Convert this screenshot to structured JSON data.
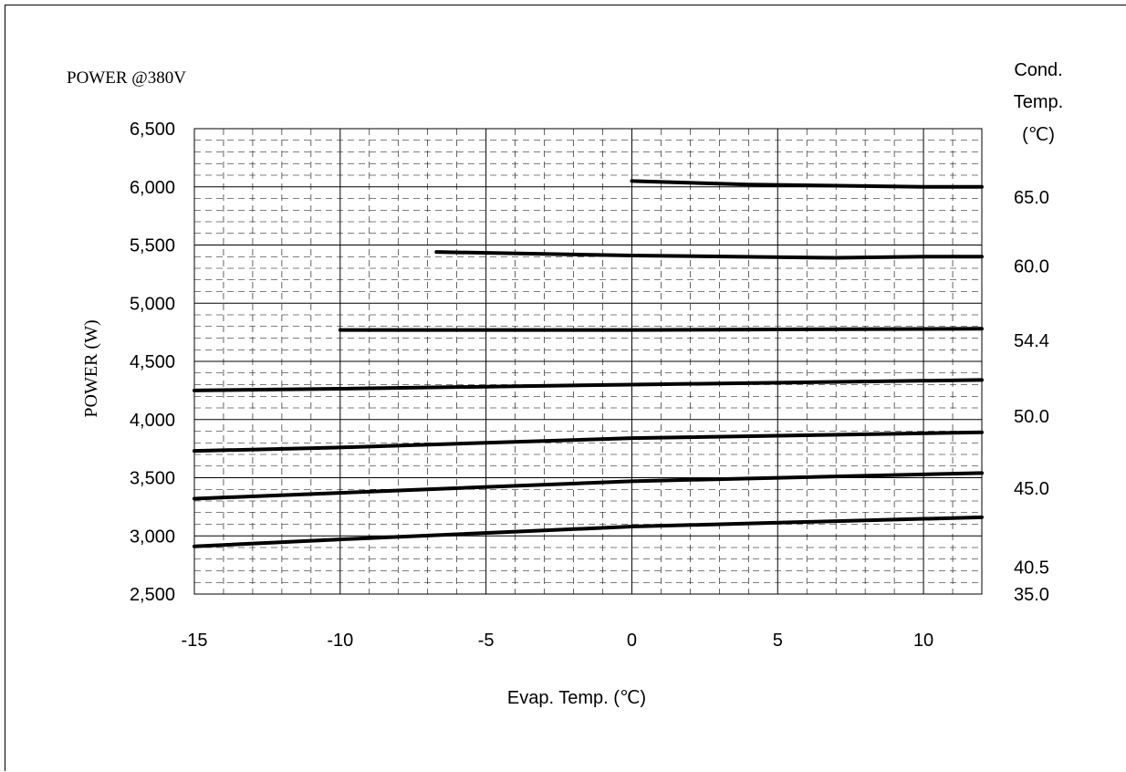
{
  "chart_data": {
    "type": "line",
    "title": "POWER  @380V",
    "xlabel": "Evap. Temp. (℃)",
    "ylabel": "POWER (W)",
    "right_axis_title": [
      "Cond.",
      "Temp.",
      "(℃)"
    ],
    "xlim": [
      -15,
      12
    ],
    "ylim": [
      2500,
      6500
    ],
    "x_ticks": [
      -15,
      -10,
      -5,
      0,
      5,
      10
    ],
    "x_tick_labels": [
      "-15",
      "-10",
      "-5",
      "0",
      "5",
      "10"
    ],
    "y_ticks": [
      2500,
      3000,
      3500,
      4000,
      4500,
      5000,
      5500,
      6000,
      6500
    ],
    "y_tick_labels": [
      "2,500",
      "3,000",
      "3,500",
      "4,000",
      "4,500",
      "5,000",
      "5,500",
      "6,000",
      "6,500"
    ],
    "grid": true,
    "series": [
      {
        "name": "65.0",
        "x": [
          0,
          4,
          10,
          12
        ],
        "y": [
          6050,
          6020,
          6000,
          6000
        ]
      },
      {
        "name": "60.0",
        "x": [
          -6.7,
          0,
          7,
          10,
          12
        ],
        "y": [
          5440,
          5410,
          5390,
          5400,
          5400
        ]
      },
      {
        "name": "54.4",
        "x": [
          -10,
          0,
          12
        ],
        "y": [
          4770,
          4770,
          4780
        ]
      },
      {
        "name": "50.0",
        "x": [
          -15,
          -10,
          0,
          12
        ],
        "y": [
          4250,
          4265,
          4300,
          4340
        ]
      },
      {
        "name": "45.0",
        "x": [
          -15,
          -10,
          0,
          12
        ],
        "y": [
          3730,
          3760,
          3840,
          3890
        ]
      },
      {
        "name": "40.5",
        "x": [
          -15,
          -10,
          0,
          12
        ],
        "y": [
          3320,
          3370,
          3470,
          3540
        ]
      },
      {
        "name": "35.0",
        "x": [
          -15,
          -10,
          0,
          12
        ],
        "y": [
          2910,
          2970,
          3080,
          3160
        ]
      }
    ],
    "right_labels": [
      {
        "text": "65.0",
        "y": 5910
      },
      {
        "text": "60.0",
        "y": 5320
      },
      {
        "text": "54.4",
        "y": 4680
      },
      {
        "text": "50.0",
        "y": 4030
      },
      {
        "text": "45.0",
        "y": 3410
      },
      {
        "text": "40.5",
        "y": 2730
      },
      {
        "text": "35.0",
        "y": 2500
      }
    ],
    "line_color": "#000000",
    "grid_color": "#000000"
  }
}
